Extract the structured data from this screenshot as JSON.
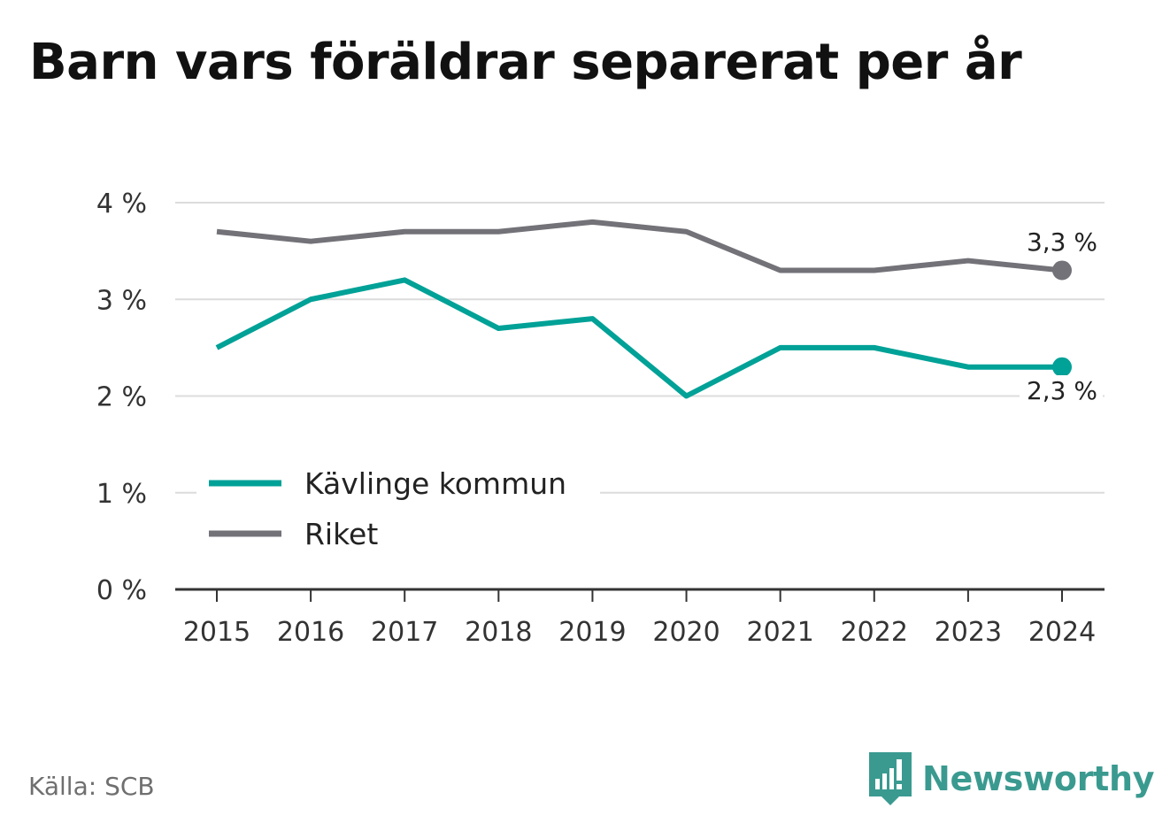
{
  "title": "Barn vars föräldrar separerat per år",
  "source": "Källa: SCB",
  "brand": {
    "name": "Newsworthy",
    "icon": "newsworthy-logo-icon"
  },
  "colors": {
    "kavlinge": "#00a197",
    "riket": "#737278",
    "grid": "#dcdcdc",
    "axis": "#333333",
    "brand": "#3a9a90"
  },
  "chart_data": {
    "type": "line",
    "categories": [
      "2015",
      "2016",
      "2017",
      "2018",
      "2019",
      "2020",
      "2021",
      "2022",
      "2023",
      "2024"
    ],
    "series": [
      {
        "name": "Kävlinge kommun",
        "values": [
          2.5,
          3.0,
          3.2,
          2.7,
          2.8,
          2.0,
          2.5,
          2.5,
          2.3,
          2.3
        ],
        "end_label": "2,3 %"
      },
      {
        "name": "Riket",
        "values": [
          3.7,
          3.6,
          3.7,
          3.7,
          3.8,
          3.7,
          3.3,
          3.3,
          3.4,
          3.3
        ],
        "end_label": "3,3 %"
      }
    ],
    "yticks": [
      0,
      1,
      2,
      3,
      4
    ],
    "ytick_labels": [
      "0 %",
      "1 %",
      "2 %",
      "3 %",
      "4 %"
    ],
    "ylim": [
      0,
      4
    ],
    "grid": true,
    "legend_position": "bottom-left"
  }
}
